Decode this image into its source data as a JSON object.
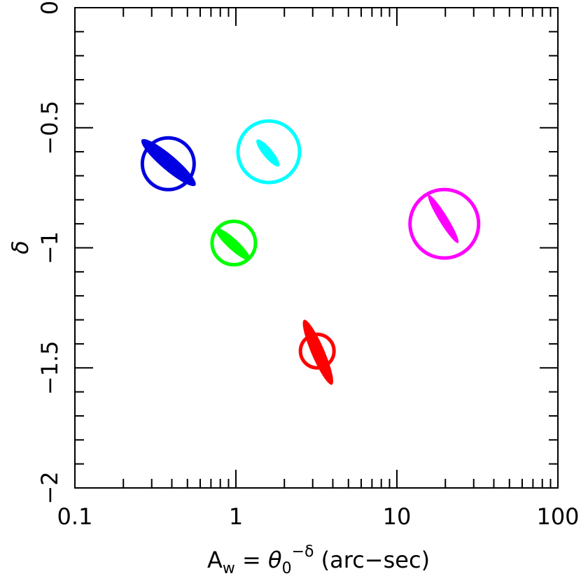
{
  "chart_data": {
    "type": "scatter",
    "title": "",
    "xlabel": {
      "A": "A",
      "w": "w",
      "eq": " = ",
      "theta": "θ",
      "zero": "0",
      "exp": "−δ",
      "unit": " (arc−sec)"
    },
    "ylabel": "δ",
    "xscale": "log",
    "xlim": [
      0.1,
      100
    ],
    "ylim": [
      -2,
      0
    ],
    "x_ticks": [
      {
        "value": 0.1,
        "label": "0.1"
      },
      {
        "value": 1,
        "label": "1"
      },
      {
        "value": 10,
        "label": "10"
      },
      {
        "value": 100,
        "label": "100"
      }
    ],
    "y_ticks": [
      {
        "value": 0,
        "label": "0"
      },
      {
        "value": -0.5,
        "label": "−0.5"
      },
      {
        "value": -1,
        "label": "−1"
      },
      {
        "value": -1.5,
        "label": "−1.5"
      },
      {
        "value": -2,
        "label": "−2"
      }
    ],
    "grid": false,
    "legend": "none",
    "series": [
      {
        "color": "#0000e0",
        "circle_center": {
          "x": 0.38,
          "y": -0.65
        },
        "ellipse": {
          "x_start": 0.26,
          "y_start": -0.55,
          "x_end": 0.56,
          "y_end": -0.74,
          "y_halfwidth": 0.035
        }
      },
      {
        "color": "#00ffff",
        "circle_center": {
          "x": 1.6,
          "y": -0.6
        },
        "ellipse": {
          "x_start": 1.35,
          "y_start": -0.55,
          "x_end": 1.85,
          "y_end": -0.66,
          "y_halfwidth": 0.022
        }
      },
      {
        "color": "#00ff00",
        "circle_center": {
          "x": 0.97,
          "y": -0.98
        },
        "ellipse": {
          "x_start": 0.75,
          "y_start": -0.92,
          "x_end": 1.22,
          "y_end": -1.05,
          "y_halfwidth": 0.025
        }
      },
      {
        "color": "#ff00ff",
        "circle_center": {
          "x": 19.7,
          "y": -0.9
        },
        "ellipse": {
          "x_start": 15.7,
          "y_start": -0.78,
          "x_end": 24.0,
          "y_end": -0.98,
          "y_halfwidth": 0.02
        }
      },
      {
        "color": "#ff0000",
        "circle_center": {
          "x": 3.2,
          "y": -1.43
        },
        "ellipse": {
          "x_start": 2.65,
          "y_start": -1.3,
          "x_end": 3.95,
          "y_end": -1.57,
          "y_halfwidth": 0.03
        }
      }
    ]
  }
}
